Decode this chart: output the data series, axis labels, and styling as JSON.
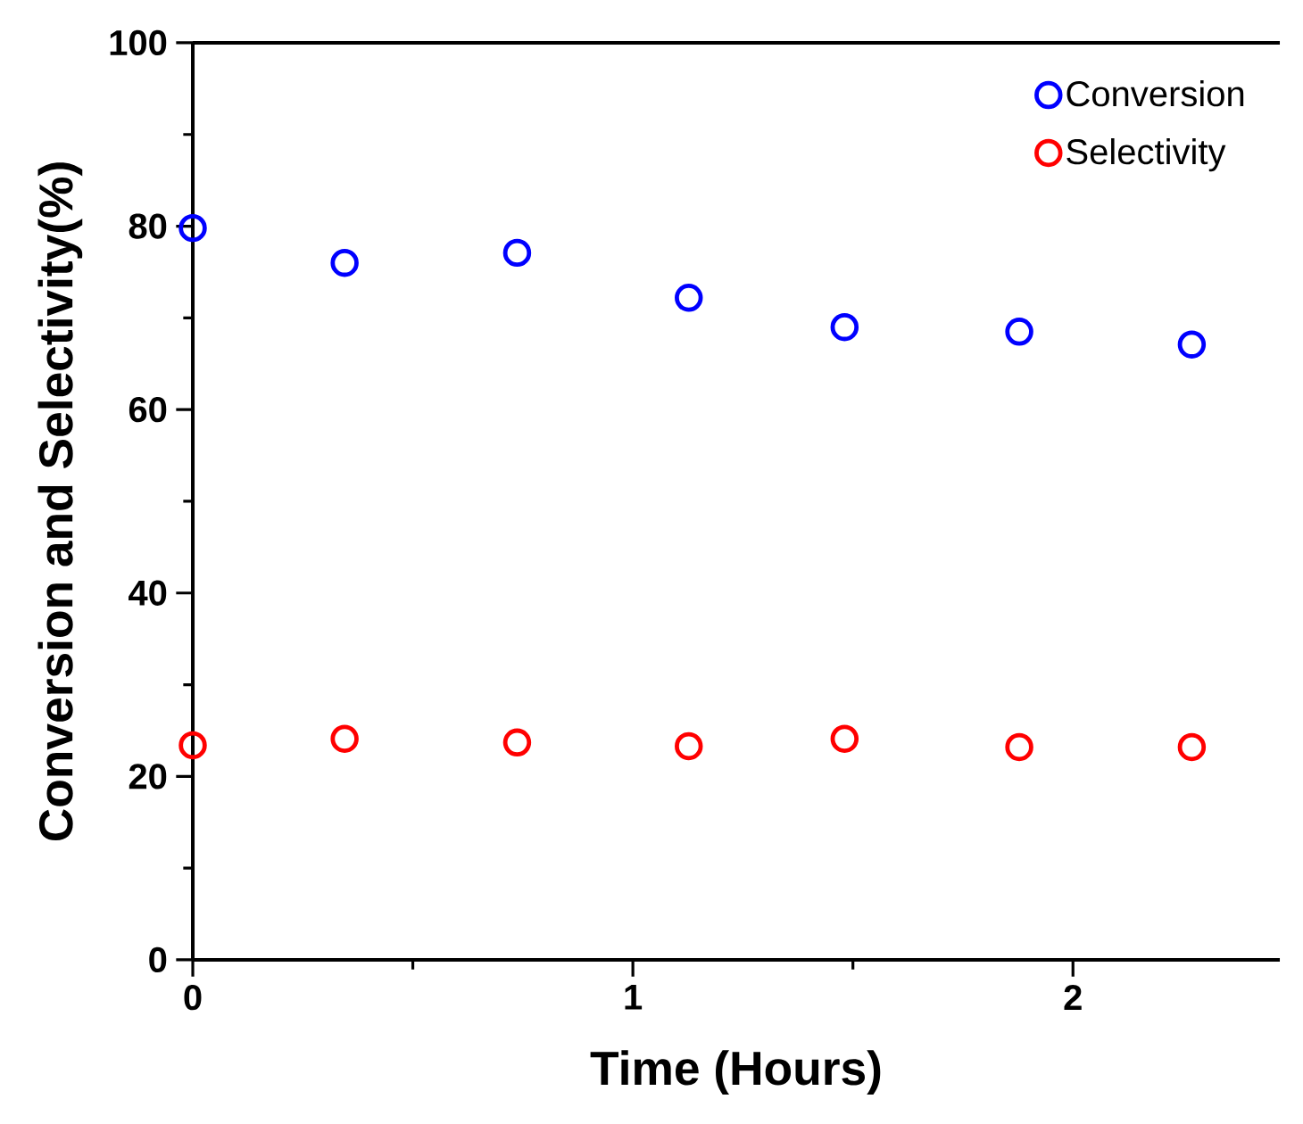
{
  "chart_data": {
    "type": "scatter",
    "xlabel": "Time (Hours)",
    "ylabel": "Conversion and Selectivity(%)",
    "x": [
      0,
      0.345,
      0.737,
      1.127,
      1.481,
      1.878,
      2.27
    ],
    "series": [
      {
        "name": "Conversion",
        "color": "#0000ff",
        "values": [
          79.8,
          76.0,
          77.1,
          72.2,
          69.0,
          68.5,
          67.1
        ]
      },
      {
        "name": "Selectivity",
        "color": "#ff0000",
        "values": [
          23.4,
          24.1,
          23.7,
          23.3,
          24.1,
          23.2,
          23.2
        ]
      }
    ],
    "xlim": [
      0,
      2.47
    ],
    "ylim": [
      0,
      100
    ],
    "xticks": [
      0,
      {
        "value": 0.5,
        "label": null
      },
      1,
      {
        "value": 1.5,
        "label": null
      },
      2
    ],
    "yticks": [
      0,
      {
        "value": 10,
        "label": null
      },
      20,
      {
        "value": 30,
        "label": null
      },
      40,
      {
        "value": 50,
        "label": null
      },
      60,
      {
        "value": 70,
        "label": null
      },
      80,
      {
        "value": 90,
        "label": null
      },
      100
    ],
    "marker": "circle",
    "legend": "top right"
  }
}
